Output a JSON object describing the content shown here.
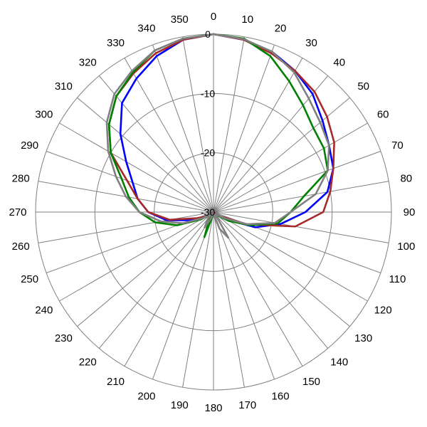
{
  "chart_data": {
    "type": "line",
    "projection": "polar",
    "angle_direction": "clockwise",
    "zero_direction": "top",
    "angle_ticks": [
      0,
      10,
      20,
      30,
      40,
      50,
      60,
      70,
      80,
      90,
      100,
      110,
      120,
      130,
      140,
      150,
      160,
      170,
      180,
      190,
      200,
      210,
      220,
      230,
      240,
      250,
      260,
      270,
      280,
      290,
      300,
      310,
      320,
      330,
      340,
      350
    ],
    "angle_tick_labels": [
      "0",
      "10",
      "20",
      "30",
      "40",
      "50",
      "60",
      "70",
      "80",
      "90",
      "100",
      "110",
      "120",
      "130",
      "140",
      "150",
      "160",
      "170",
      "180",
      "190",
      "200",
      "210",
      "220",
      "230",
      "240",
      "250",
      "260",
      "270",
      "280",
      "290",
      "300",
      "310",
      "320",
      "330",
      "340",
      "350"
    ],
    "radial_range": [
      -30,
      0
    ],
    "radial_ticks": [
      0,
      -10,
      -20,
      -30
    ],
    "radial_tick_labels": [
      "0",
      "-10",
      "-20",
      "-30"
    ],
    "grid": true,
    "legend": "none",
    "series": [
      {
        "color": "#0000ff",
        "points": [
          [
            0,
            0
          ],
          [
            10,
            -0.5
          ],
          [
            20,
            -1.2
          ],
          [
            30,
            -2.5
          ],
          [
            40,
            -4
          ],
          [
            50,
            -6
          ],
          [
            60,
            -7.5
          ],
          [
            70,
            -8.5
          ],
          [
            80,
            -10.5
          ],
          [
            90,
            -14.5
          ],
          [
            100,
            -18.5
          ],
          [
            110,
            -22.5
          ],
          [
            120,
            -27.5
          ],
          [
            130,
            -29.5
          ],
          [
            180,
            -30
          ],
          [
            230,
            -29.5
          ],
          [
            240,
            -28
          ],
          [
            250,
            -26
          ],
          [
            260,
            -22
          ],
          [
            270,
            -19
          ],
          [
            280,
            -17
          ],
          [
            290,
            -15.5
          ],
          [
            300,
            -13
          ],
          [
            310,
            -9.5
          ],
          [
            320,
            -6
          ],
          [
            330,
            -4
          ],
          [
            340,
            -2
          ],
          [
            350,
            -0.5
          ]
        ]
      },
      {
        "color": "#a52a2a",
        "points": [
          [
            0,
            0
          ],
          [
            10,
            -0.5
          ],
          [
            20,
            -1.5
          ],
          [
            30,
            -2.5
          ],
          [
            40,
            -3.5
          ],
          [
            50,
            -5
          ],
          [
            60,
            -6.5
          ],
          [
            70,
            -8.5
          ],
          [
            80,
            -10
          ],
          [
            90,
            -11.5
          ],
          [
            100,
            -16
          ],
          [
            110,
            -24
          ],
          [
            120,
            -28.5
          ],
          [
            130,
            -29.5
          ],
          [
            180,
            -30
          ],
          [
            230,
            -29.5
          ],
          [
            240,
            -28.5
          ],
          [
            250,
            -27
          ],
          [
            260,
            -22.5
          ],
          [
            270,
            -19
          ],
          [
            280,
            -17
          ],
          [
            290,
            -14.5
          ],
          [
            300,
            -10
          ],
          [
            310,
            -7
          ],
          [
            320,
            -4.5
          ],
          [
            330,
            -3
          ],
          [
            340,
            -1.5
          ],
          [
            350,
            -0.5
          ]
        ]
      },
      {
        "color": "#008000",
        "points": [
          [
            0,
            0
          ],
          [
            10,
            -0.3
          ],
          [
            20,
            -2
          ],
          [
            30,
            -4.5
          ],
          [
            40,
            -6.5
          ],
          [
            50,
            -8
          ],
          [
            60,
            -8.5
          ],
          [
            70,
            -9.5
          ],
          [
            80,
            -14.5
          ],
          [
            90,
            -17
          ],
          [
            100,
            -19
          ],
          [
            110,
            -23.5
          ],
          [
            120,
            -27
          ],
          [
            130,
            -29
          ],
          [
            160,
            -29
          ],
          [
            170,
            -29.5
          ],
          [
            180,
            -30
          ],
          [
            190,
            -29.5
          ],
          [
            200,
            -25.5
          ],
          [
            210,
            -28.5
          ],
          [
            230,
            -29.5
          ],
          [
            240,
            -27.5
          ],
          [
            250,
            -23.5
          ],
          [
            260,
            -20
          ],
          [
            270,
            -17.5
          ],
          [
            280,
            -15.5
          ],
          [
            290,
            -13.5
          ],
          [
            300,
            -10
          ],
          [
            310,
            -7
          ],
          [
            320,
            -4.5
          ],
          [
            330,
            -2.8
          ],
          [
            340,
            -1
          ],
          [
            350,
            -0.3
          ]
        ]
      },
      {
        "color": "#808080",
        "points": [
          [
            0,
            0
          ],
          [
            10,
            -0.4
          ],
          [
            20,
            -1.2
          ],
          [
            30,
            -2.8
          ],
          [
            40,
            -5
          ],
          [
            50,
            -6.5
          ],
          [
            60,
            -7.5
          ],
          [
            70,
            -9.5
          ],
          [
            80,
            -12.5
          ],
          [
            90,
            -17
          ],
          [
            100,
            -19.5
          ],
          [
            110,
            -24
          ],
          [
            120,
            -28
          ],
          [
            130,
            -29.5
          ],
          [
            140,
            -29.5
          ],
          [
            150,
            -25
          ],
          [
            160,
            -27
          ],
          [
            170,
            -29.5
          ],
          [
            180,
            -30
          ],
          [
            200,
            -29
          ],
          [
            210,
            -27
          ],
          [
            220,
            -28.5
          ],
          [
            230,
            -29.5
          ],
          [
            240,
            -28
          ],
          [
            250,
            -24.5
          ],
          [
            260,
            -21
          ],
          [
            270,
            -17.5
          ],
          [
            280,
            -15
          ],
          [
            290,
            -12.5
          ],
          [
            300,
            -9.5
          ],
          [
            310,
            -6.5
          ],
          [
            320,
            -4
          ],
          [
            330,
            -2.5
          ],
          [
            340,
            -1
          ],
          [
            350,
            -0.3
          ]
        ]
      }
    ]
  }
}
